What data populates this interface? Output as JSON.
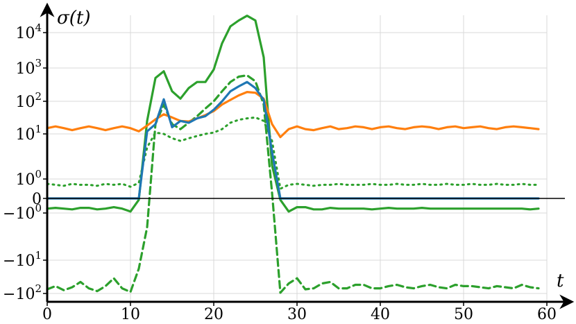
{
  "chart_data": {
    "type": "line",
    "title": "",
    "xlabel": "t",
    "ylabel": "σ(t)",
    "xlim": [
      0,
      60
    ],
    "y_scale": "symlog",
    "y_tick_values": [
      10000,
      1000,
      100,
      10,
      1,
      0,
      -1,
      -10,
      -100
    ],
    "y_tick_labels": {
      "10000": {
        "base": "10",
        "exp": "4"
      },
      "1000": {
        "base": "10",
        "exp": "3"
      },
      "100": {
        "base": "10",
        "exp": "2"
      },
      "10": {
        "base": "10",
        "exp": "1"
      },
      "1": {
        "base": "10",
        "exp": "0"
      },
      "0": {
        "base": "0",
        "exp": ""
      },
      "-1": {
        "base": "−10",
        "exp": "0"
      },
      "-10": {
        "base": "−10",
        "exp": "1"
      },
      "-100": {
        "base": "−10",
        "exp": "2"
      }
    },
    "x_ticks": [
      "0",
      "10",
      "20",
      "30",
      "40",
      "50",
      "60"
    ],
    "grid": true,
    "zero_line": true,
    "x": [
      0,
      1,
      2,
      3,
      4,
      5,
      6,
      7,
      8,
      9,
      10,
      11,
      12,
      13,
      14,
      15,
      16,
      17,
      18,
      19,
      20,
      21,
      22,
      23,
      24,
      25,
      26,
      27,
      28,
      29,
      30,
      31,
      32,
      33,
      34,
      35,
      36,
      37,
      38,
      39,
      40,
      41,
      42,
      43,
      44,
      45,
      46,
      47,
      48,
      49,
      50,
      51,
      52,
      53,
      54,
      55,
      56,
      57,
      58,
      59
    ],
    "series": [
      {
        "color": "#2ca02c",
        "dash": "solid",
        "values": [
          -0.7,
          -0.65,
          -0.7,
          -0.75,
          -0.65,
          -0.65,
          -0.75,
          -0.7,
          -0.6,
          -0.7,
          -0.9,
          -0.1,
          25,
          500,
          800,
          200,
          120,
          250,
          380,
          380,
          900,
          5000,
          15000,
          22000,
          30000,
          22000,
          2000,
          2,
          -0.1,
          -0.9,
          -0.6,
          -0.6,
          -0.75,
          -0.75,
          -0.65,
          -0.7,
          -0.7,
          -0.7,
          -0.7,
          -0.75,
          -0.7,
          -0.65,
          -0.7,
          -0.7,
          -0.7,
          -0.65,
          -0.7,
          -0.7,
          -0.7,
          -0.7,
          -0.7,
          -0.7,
          -0.7,
          -0.7,
          -0.7,
          -0.7,
          -0.7,
          -0.7,
          -0.75,
          -0.7
        ]
      },
      {
        "color": "#2ca02c",
        "dash": "dashed",
        "values": [
          -75,
          -60,
          -80,
          -65,
          -45,
          -70,
          -85,
          -60,
          -35,
          -70,
          -90,
          -18,
          -2,
          20,
          80,
          20,
          14,
          22,
          35,
          60,
          100,
          200,
          380,
          550,
          600,
          400,
          80,
          0.3,
          -95,
          -50,
          -35,
          -75,
          -70,
          -50,
          -45,
          -70,
          -70,
          -55,
          -55,
          -70,
          -70,
          -60,
          -55,
          -65,
          -70,
          -60,
          -55,
          -65,
          -70,
          -55,
          -60,
          -60,
          -65,
          -70,
          -60,
          -65,
          -70,
          -55,
          -65,
          -70
        ]
      },
      {
        "color": "#2ca02c",
        "dash": "dotted",
        "values": [
          0.75,
          0.7,
          0.65,
          0.75,
          0.7,
          0.7,
          0.65,
          0.75,
          0.7,
          0.75,
          0.6,
          0.8,
          5,
          11,
          10,
          8,
          7,
          8,
          9,
          10,
          11,
          14,
          22,
          27,
          30,
          32,
          25,
          7,
          0.5,
          0.7,
          0.75,
          0.7,
          0.65,
          0.7,
          0.7,
          0.75,
          0.7,
          0.7,
          0.7,
          0.75,
          0.7,
          0.7,
          0.75,
          0.7,
          0.7,
          0.75,
          0.7,
          0.7,
          0.75,
          0.7,
          0.7,
          0.75,
          0.7,
          0.7,
          0.75,
          0.7,
          0.7,
          0.75,
          0.7,
          0.7
        ]
      },
      {
        "color": "#ff7f0e",
        "dash": "solid",
        "values": [
          15,
          17,
          15,
          13,
          15,
          17,
          15,
          13,
          15,
          17,
          15,
          12,
          18,
          28,
          40,
          32,
          25,
          24,
          30,
          38,
          50,
          80,
          110,
          150,
          190,
          180,
          120,
          20,
          8.5,
          14,
          17,
          14,
          13,
          15,
          17,
          14,
          15,
          17,
          16,
          14,
          16,
          17,
          15,
          14,
          16,
          17,
          16,
          14,
          16,
          17,
          15,
          16,
          17,
          15,
          14,
          16,
          17,
          16,
          15,
          14
        ]
      },
      {
        "color": "#1f77b4",
        "dash": "solid",
        "values": [
          0,
          0,
          0,
          0,
          0,
          0,
          0,
          0,
          0,
          0,
          0,
          0,
          12,
          20,
          115,
          16,
          25,
          22,
          30,
          35,
          55,
          100,
          200,
          280,
          380,
          250,
          110,
          4,
          0,
          0,
          0,
          0,
          0,
          0,
          0,
          0,
          0,
          0,
          0,
          0,
          0,
          0,
          0,
          0,
          0,
          0,
          0,
          0,
          0,
          0,
          0,
          0,
          0,
          0,
          0,
          0,
          0,
          0,
          0,
          0
        ]
      }
    ]
  }
}
